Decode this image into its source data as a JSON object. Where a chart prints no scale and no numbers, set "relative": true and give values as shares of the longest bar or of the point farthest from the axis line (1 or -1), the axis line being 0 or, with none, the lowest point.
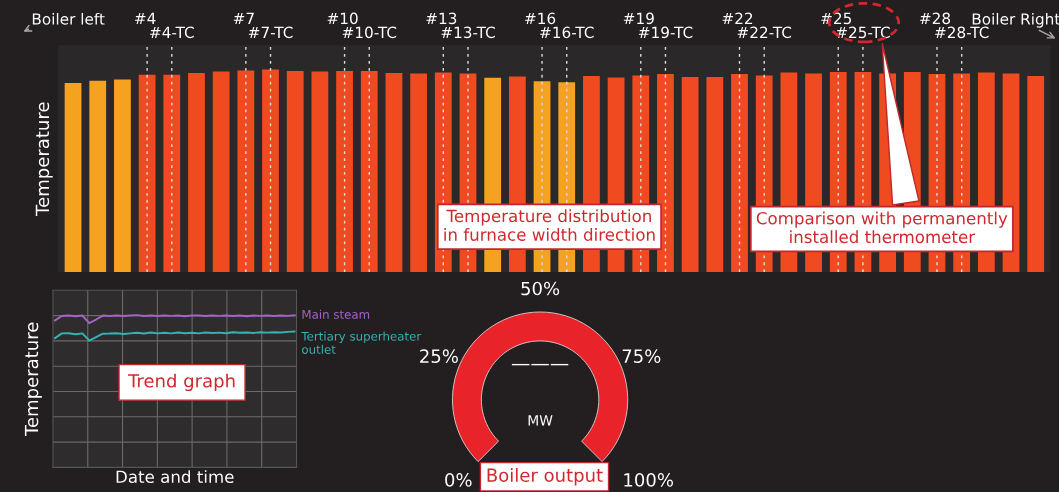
{
  "chart_data": [
    {
      "type": "bar",
      "relative": true,
      "ylabel": "Temperature",
      "grid": "x",
      "categories": [
        null,
        null,
        null,
        "#4",
        "#4-TC",
        null,
        null,
        "#7",
        "#7-TC",
        null,
        null,
        "#10",
        "#10-TC",
        null,
        null,
        "#13",
        "#13-TC",
        null,
        null,
        "#16",
        "#16-TC",
        null,
        null,
        "#19",
        "#19-TC",
        null,
        null,
        "#22",
        "#22-TC",
        null,
        null,
        "#25",
        "#25-TC",
        null,
        null,
        "#28",
        "#28-TC",
        null,
        null,
        null
      ],
      "values": [
        0.934,
        0.945,
        0.951,
        0.974,
        0.974,
        0.983,
        0.991,
        0.995,
        1,
        0.993,
        0.99,
        0.993,
        0.993,
        0.983,
        0.981,
        0.985,
        0.981,
        0.959,
        0.966,
        0.942,
        0.937,
        0.968,
        0.961,
        0.971,
        0.978,
        0.963,
        0.963,
        0.978,
        0.971,
        0.985,
        0.981,
        0.988,
        0.988,
        0.981,
        0.988,
        0.978,
        0.981,
        0.985,
        0.98,
        0.968
      ],
      "colors": [
        "#f4a21f",
        "#f4a21f",
        "#f4a21f",
        "#f04a20",
        "#f04a20",
        "#f04a20",
        "#f04a20",
        "#f04a20",
        "#f04a20",
        "#f04a20",
        "#f04a20",
        "#f04a20",
        "#f04a20",
        "#f04a20",
        "#f04a20",
        "#f04a20",
        "#f04a20",
        "#f4a21f",
        "#f04a20",
        "#f4a21f",
        "#f4a21f",
        "#f04a20",
        "#f04a20",
        "#f04a20",
        "#f04a20",
        "#f04a20",
        "#f04a20",
        "#f04a20",
        "#f04a20",
        "#f04a20",
        "#f04a20",
        "#f04a20",
        "#f04a20",
        "#f04a20",
        "#f04a20",
        "#f04a20",
        "#f04a20",
        "#f04a20",
        "#f04a20",
        "#f04a20"
      ],
      "annotations": [
        "Boiler left",
        "Boiler Right",
        "Temperature distribution\nin furnace width direction",
        "Comparison with permanently\ninstalled thermometer"
      ]
    },
    {
      "type": "line",
      "relative": true,
      "ylabel": "Temperature",
      "xlabel": "Date and time",
      "grid": true,
      "categories": [
        null,
        null,
        null,
        null,
        null,
        null,
        null,
        null,
        null,
        null,
        null,
        null,
        null,
        null,
        null,
        null,
        null,
        null,
        null,
        null,
        null,
        null,
        null,
        null,
        null,
        null,
        null,
        null,
        null,
        null,
        null,
        null,
        null,
        null,
        null,
        null
      ],
      "series": [
        {
          "name": "Main steam",
          "color": "#a463c8",
          "values": [
            0.965,
            0.994,
            0.997,
            0.992,
            0.997,
            0.948,
            0.971,
            0.997,
            0.994,
            0.998,
            0.994,
            0.997,
            1,
            0.994,
            0.997,
            0.994,
            0.998,
            0.995,
            0.997,
            0.993,
            0.997,
            0.998,
            0.994,
            0.997,
            0.995,
            0.998,
            0.994,
            0.997,
            0.993,
            0.997,
            0.995,
            0.998,
            0.994,
            0.997,
            0.995,
            0.998
          ]
        },
        {
          "name": "Tertiary superheater\noutlet",
          "color": "#35b3b3",
          "values": [
            0.849,
            0.88,
            0.881,
            0.874,
            0.88,
            0.833,
            0.855,
            0.878,
            0.879,
            0.881,
            0.876,
            0.88,
            0.884,
            0.879,
            0.886,
            0.88,
            0.884,
            0.88,
            0.886,
            0.881,
            0.884,
            0.88,
            0.886,
            0.883,
            0.885,
            0.881,
            0.887,
            0.884,
            0.886,
            0.883,
            0.888,
            0.885,
            0.887,
            0.886,
            0.89,
            0.892
          ]
        }
      ],
      "annotations": [
        "Trend graph"
      ]
    },
    {
      "type": "pie",
      "categories": [
        null
      ],
      "values": [
        100
      ],
      "colors": [
        "#e8242a"
      ],
      "annotations": [
        "0%",
        "25%",
        "50%",
        "75%",
        "100%",
        "———",
        "MW",
        "Boiler output"
      ]
    }
  ]
}
